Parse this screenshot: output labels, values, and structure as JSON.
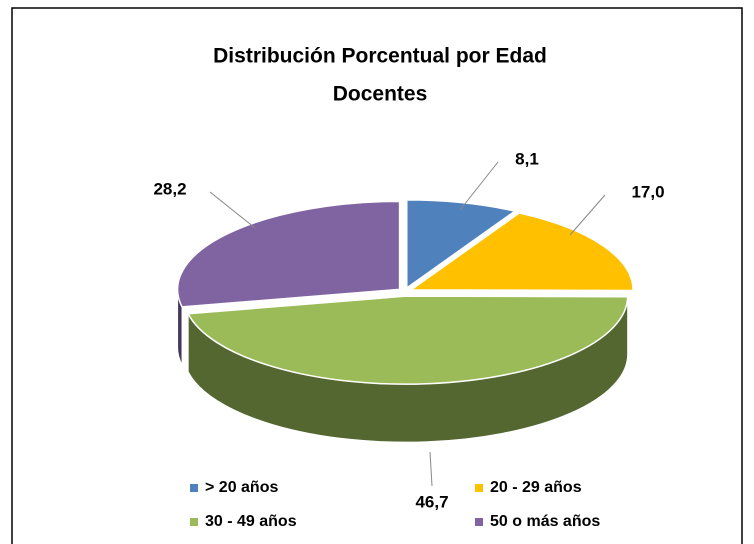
{
  "chart_data": {
    "type": "pie3d",
    "title": [
      "Distribución Porcentual por Edad",
      "Docentes"
    ],
    "categories": [
      "> 20 años",
      "20 - 29 años",
      "30 - 49 años",
      "50 o más años"
    ],
    "values": [
      8.1,
      17.0,
      46.7,
      28.2
    ],
    "value_labels": [
      "8,1",
      "17,0",
      "46,7",
      "28,2"
    ],
    "colors": [
      "#4f81bd",
      "#ffc000",
      "#9bbb59",
      "#8064a2"
    ],
    "legend": "bottom"
  }
}
